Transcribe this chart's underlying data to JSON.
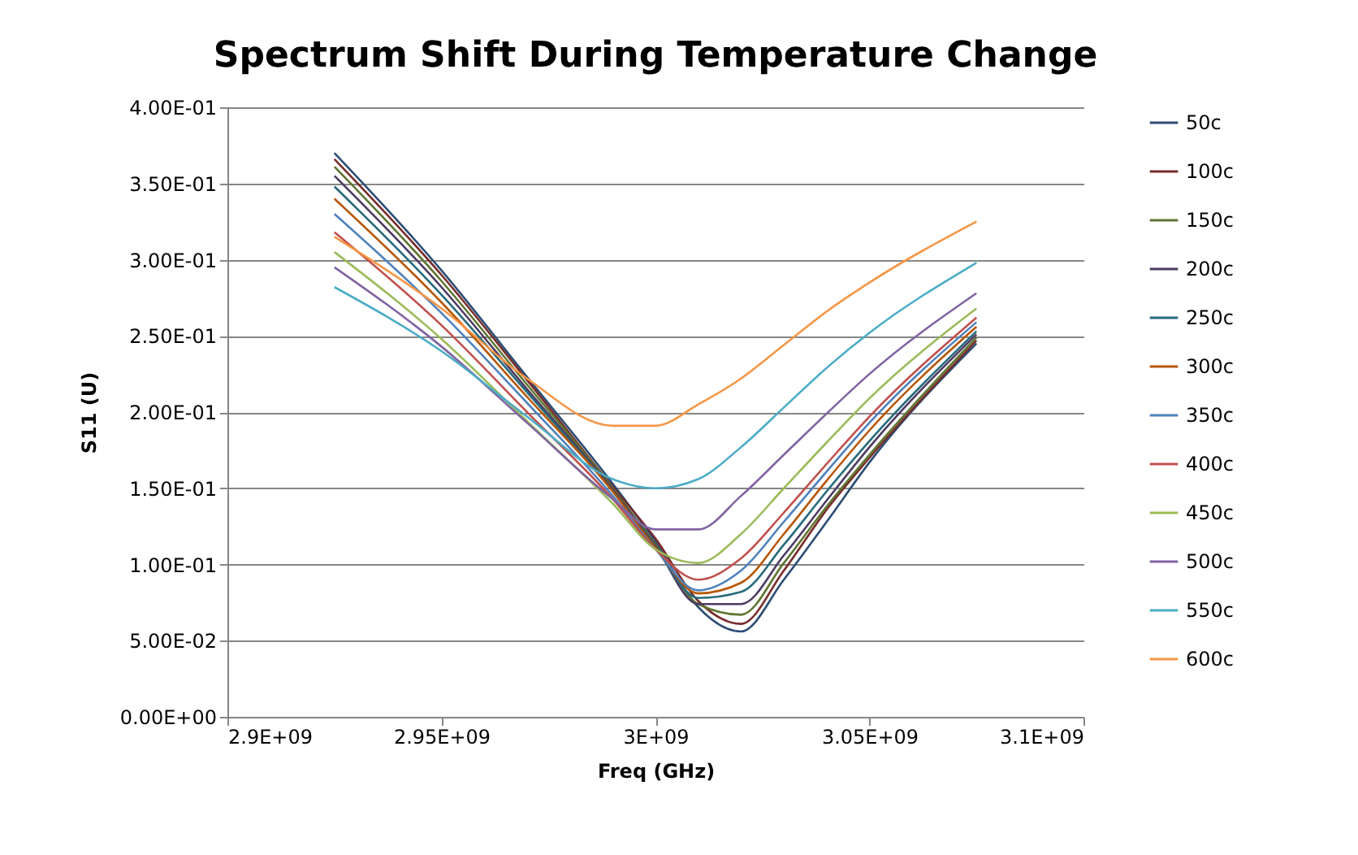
{
  "chart_data": {
    "type": "line",
    "title": "Spectrum Shift During Temperature Change",
    "xlabel": "Freq (GHz)",
    "ylabel": "S11 (U)",
    "x": [
      2925000000.0,
      2950000000.0,
      2970000000.0,
      2990000000.0,
      3000000000.0,
      3010000000.0,
      3020000000.0,
      3030000000.0,
      3040000000.0,
      3050000000.0,
      3075000000.0
    ],
    "series": [
      {
        "name": "50c",
        "color": "#2c4d75",
        "values": [
          0.37,
          0.293,
          0.223,
          0.153,
          0.115,
          0.072,
          0.056,
          0.09,
          0.128,
          0.167,
          0.245
        ]
      },
      {
        "name": "100c",
        "color": "#772c2a",
        "values": [
          0.366,
          0.29,
          0.221,
          0.151,
          0.117,
          0.076,
          0.061,
          0.096,
          0.136,
          0.17,
          0.247
        ]
      },
      {
        "name": "150c",
        "color": "#5f7530",
        "values": [
          0.361,
          0.286,
          0.218,
          0.15,
          0.113,
          0.074,
          0.067,
          0.101,
          0.138,
          0.172,
          0.249
        ]
      },
      {
        "name": "200c",
        "color": "#4d3b62",
        "values": [
          0.355,
          0.282,
          0.215,
          0.149,
          0.112,
          0.074,
          0.074,
          0.106,
          0.142,
          0.177,
          0.251
        ]
      },
      {
        "name": "250c",
        "color": "#276a7c",
        "values": [
          0.348,
          0.277,
          0.213,
          0.148,
          0.111,
          0.078,
          0.082,
          0.113,
          0.148,
          0.181,
          0.253
        ]
      },
      {
        "name": "300c",
        "color": "#b65708",
        "values": [
          0.34,
          0.272,
          0.21,
          0.148,
          0.111,
          0.081,
          0.088,
          0.12,
          0.155,
          0.188,
          0.256
        ]
      },
      {
        "name": "350c",
        "color": "#4f81bd",
        "values": [
          0.33,
          0.265,
          0.206,
          0.145,
          0.11,
          0.083,
          0.096,
          0.128,
          0.161,
          0.193,
          0.259
        ]
      },
      {
        "name": "400c",
        "color": "#c0504d",
        "values": [
          0.318,
          0.257,
          0.2,
          0.143,
          0.11,
          0.09,
          0.104,
          0.134,
          0.166,
          0.197,
          0.262
        ]
      },
      {
        "name": "450c",
        "color": "#9bbb59",
        "values": [
          0.305,
          0.248,
          0.194,
          0.14,
          0.11,
          0.101,
          0.12,
          0.15,
          0.18,
          0.209,
          0.268
        ]
      },
      {
        "name": "500c",
        "color": "#8064a2",
        "values": [
          0.295,
          0.243,
          0.193,
          0.143,
          0.123,
          0.123,
          0.145,
          0.172,
          0.199,
          0.225,
          0.278
        ]
      },
      {
        "name": "550c",
        "color": "#4bacc6",
        "values": [
          0.282,
          0.24,
          0.197,
          0.156,
          0.15,
          0.156,
          0.177,
          0.203,
          0.229,
          0.252,
          0.298
        ]
      },
      {
        "name": "600c",
        "color": "#f79646",
        "values": [
          0.315,
          0.268,
          0.222,
          0.191,
          0.191,
          0.205,
          0.222,
          0.244,
          0.266,
          0.285,
          0.325
        ]
      }
    ],
    "xlim": [
      2900000000.0,
      3100000000.0
    ],
    "xticks": [
      {
        "value": 2900000000.0,
        "label": "2.9E+09"
      },
      {
        "value": 2950000000.0,
        "label": "2.95E+09"
      },
      {
        "value": 3000000000.0,
        "label": "3E+09"
      },
      {
        "value": 3050000000.0,
        "label": "3.05E+09"
      },
      {
        "value": 3100000000.0,
        "label": "3.1E+09"
      }
    ],
    "ylim": [
      0,
      0.4
    ],
    "yticks": [
      {
        "value": 0,
        "label": "0.00E+00"
      },
      {
        "value": 0.05,
        "label": "5.00E-02"
      },
      {
        "value": 0.1,
        "label": "1.00E-01"
      },
      {
        "value": 0.15,
        "label": "1.50E-01"
      },
      {
        "value": 0.2,
        "label": "2.00E-01"
      },
      {
        "value": 0.25,
        "label": "2.50E-01"
      },
      {
        "value": 0.3,
        "label": "3.00E-01"
      },
      {
        "value": 0.35,
        "label": "3.50E-01"
      },
      {
        "value": 0.4,
        "label": "4.00E-01"
      }
    ],
    "grid": "y",
    "legend": "right",
    "marker": "none",
    "line_style": "solid"
  }
}
